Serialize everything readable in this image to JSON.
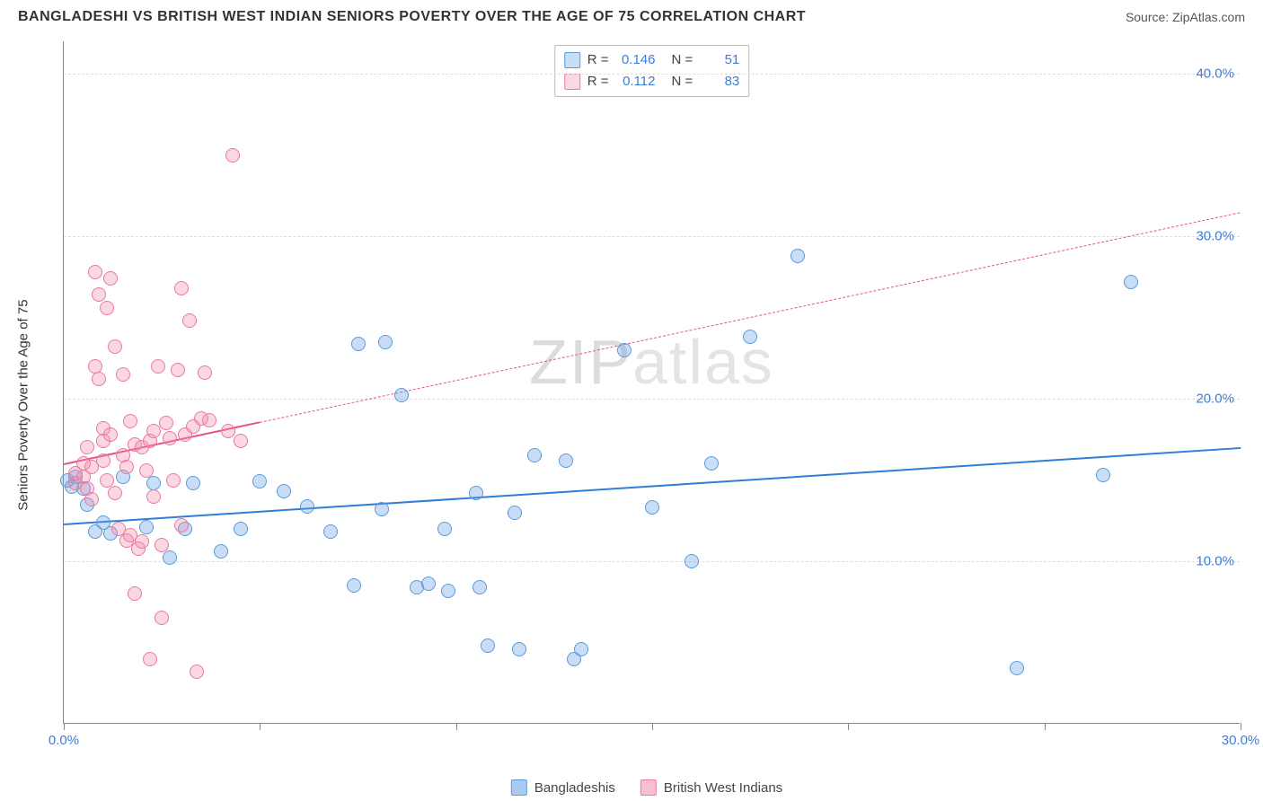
{
  "header": {
    "title": "BANGLADESHI VS BRITISH WEST INDIAN SENIORS POVERTY OVER THE AGE OF 75 CORRELATION CHART",
    "source_label": "Source:",
    "source_value": "ZipAtlas.com"
  },
  "chart": {
    "type": "scatter",
    "ylabel": "Seniors Poverty Over the Age of 75",
    "background_color": "#ffffff",
    "grid_color": "#dddddd",
    "axis_color": "#888888",
    "label_fontsize": 15,
    "tick_fontsize": 15,
    "tick_color": "#3b7dd8",
    "xlim": [
      0,
      30
    ],
    "ylim": [
      0,
      42
    ],
    "xticks": [
      {
        "value": 0,
        "label": "0.0%"
      },
      {
        "value": 5,
        "label": ""
      },
      {
        "value": 10,
        "label": ""
      },
      {
        "value": 15,
        "label": ""
      },
      {
        "value": 20,
        "label": ""
      },
      {
        "value": 25,
        "label": ""
      },
      {
        "value": 30,
        "label": "30.0%"
      }
    ],
    "yticks": [
      {
        "value": 10,
        "label": "10.0%"
      },
      {
        "value": 20,
        "label": "20.0%"
      },
      {
        "value": 30,
        "label": "30.0%"
      },
      {
        "value": 40,
        "label": "40.0%"
      }
    ],
    "watermark": "ZIPatlas",
    "series": [
      {
        "name": "Bangladeshis",
        "color_fill": "rgba(100,160,230,0.35)",
        "color_stroke": "#5a9bd8",
        "trend_color": "#2f7ed8",
        "marker_radius": 8,
        "stroke_width": 1.2,
        "R": "0.146",
        "N": "51",
        "trend": {
          "x1": 0,
          "y1": 12.3,
          "x2": 30,
          "y2": 17.0,
          "solid_until_x": 30
        },
        "points": [
          [
            0.1,
            15
          ],
          [
            0.2,
            14.6
          ],
          [
            0.3,
            15.2
          ],
          [
            0.5,
            14.5
          ],
          [
            0.6,
            13.5
          ],
          [
            0.8,
            11.8
          ],
          [
            1.0,
            12.4
          ],
          [
            1.2,
            11.7
          ],
          [
            1.5,
            15.2
          ],
          [
            2.1,
            12.1
          ],
          [
            2.3,
            14.8
          ],
          [
            2.7,
            10.2
          ],
          [
            3.1,
            12.0
          ],
          [
            3.3,
            14.8
          ],
          [
            4.0,
            10.6
          ],
          [
            4.5,
            12.0
          ],
          [
            5.0,
            14.9
          ],
          [
            5.6,
            14.3
          ],
          [
            6.2,
            13.4
          ],
          [
            6.8,
            11.8
          ],
          [
            7.4,
            8.5
          ],
          [
            7.5,
            23.4
          ],
          [
            8.2,
            23.5
          ],
          [
            8.1,
            13.2
          ],
          [
            8.6,
            20.2
          ],
          [
            9.0,
            8.4
          ],
          [
            9.3,
            8.6
          ],
          [
            9.7,
            12.0
          ],
          [
            9.8,
            8.2
          ],
          [
            10.5,
            14.2
          ],
          [
            10.6,
            8.4
          ],
          [
            10.8,
            4.8
          ],
          [
            11.5,
            13.0
          ],
          [
            11.6,
            4.6
          ],
          [
            12.0,
            16.5
          ],
          [
            12.8,
            16.2
          ],
          [
            13.0,
            4.0
          ],
          [
            13.2,
            4.6
          ],
          [
            14.3,
            23.0
          ],
          [
            15.0,
            13.3
          ],
          [
            16.0,
            10.0
          ],
          [
            16.5,
            16.0
          ],
          [
            17.5,
            23.8
          ],
          [
            18.7,
            28.8
          ],
          [
            24.3,
            3.4
          ],
          [
            26.5,
            15.3
          ],
          [
            27.2,
            27.2
          ]
        ]
      },
      {
        "name": "British West Indians",
        "color_fill": "rgba(240,140,170,0.35)",
        "color_stroke": "#e87aa0",
        "trend_color": "#e8528a",
        "marker_radius": 8,
        "stroke_width": 1.2,
        "R": "0.112",
        "N": "83",
        "trend": {
          "x1": 0,
          "y1": 16.0,
          "x2": 30,
          "y2": 31.5,
          "solid_until_x": 5
        },
        "points": [
          [
            0.3,
            14.8
          ],
          [
            0.3,
            15.4
          ],
          [
            0.5,
            15.2
          ],
          [
            0.5,
            16.0
          ],
          [
            0.6,
            14.5
          ],
          [
            0.6,
            17.0
          ],
          [
            0.7,
            15.8
          ],
          [
            0.7,
            13.8
          ],
          [
            0.8,
            27.8
          ],
          [
            0.8,
            22.0
          ],
          [
            0.9,
            21.2
          ],
          [
            0.9,
            26.4
          ],
          [
            1.0,
            16.2
          ],
          [
            1.0,
            17.4
          ],
          [
            1.0,
            18.2
          ],
          [
            1.1,
            15.0
          ],
          [
            1.1,
            25.6
          ],
          [
            1.2,
            27.4
          ],
          [
            1.2,
            17.8
          ],
          [
            1.3,
            14.2
          ],
          [
            1.3,
            23.2
          ],
          [
            1.4,
            12.0
          ],
          [
            1.5,
            21.5
          ],
          [
            1.5,
            16.5
          ],
          [
            1.6,
            15.8
          ],
          [
            1.6,
            11.3
          ],
          [
            1.7,
            18.6
          ],
          [
            1.7,
            11.6
          ],
          [
            1.8,
            17.2
          ],
          [
            1.8,
            8.0
          ],
          [
            1.9,
            10.8
          ],
          [
            2.0,
            11.2
          ],
          [
            2.0,
            17.0
          ],
          [
            2.1,
            15.6
          ],
          [
            2.2,
            17.4
          ],
          [
            2.2,
            4.0
          ],
          [
            2.3,
            14.0
          ],
          [
            2.3,
            18.0
          ],
          [
            2.4,
            22.0
          ],
          [
            2.5,
            11.0
          ],
          [
            2.5,
            6.5
          ],
          [
            2.6,
            18.5
          ],
          [
            2.7,
            17.6
          ],
          [
            2.8,
            15.0
          ],
          [
            2.9,
            21.8
          ],
          [
            3.0,
            26.8
          ],
          [
            3.0,
            12.2
          ],
          [
            3.1,
            17.8
          ],
          [
            3.2,
            24.8
          ],
          [
            3.3,
            18.3
          ],
          [
            3.4,
            3.2
          ],
          [
            3.5,
            18.8
          ],
          [
            3.6,
            21.6
          ],
          [
            3.7,
            18.7
          ],
          [
            4.2,
            18.0
          ],
          [
            4.3,
            35.0
          ],
          [
            4.5,
            17.4
          ]
        ]
      }
    ],
    "legend": [
      {
        "label": "Bangladeshis",
        "fill": "rgba(100,160,230,0.55)",
        "stroke": "#5a9bd8"
      },
      {
        "label": "British West Indians",
        "fill": "rgba(240,140,170,0.55)",
        "stroke": "#e87aa0"
      }
    ]
  }
}
